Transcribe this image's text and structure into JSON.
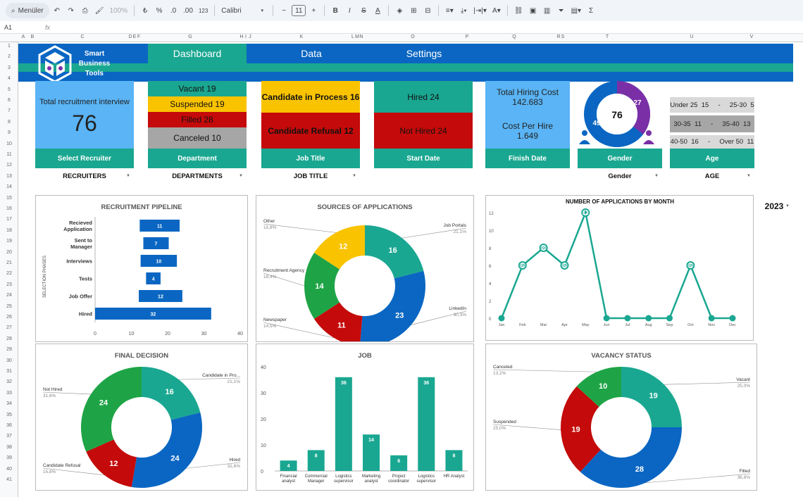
{
  "toolbar": {
    "menu_label": "Menüler",
    "zoom": "100%",
    "currency": "₺",
    "percent": "%",
    "dec_less": ".0",
    "dec_more": ".00",
    "num_format": "123",
    "font": "Calibri",
    "font_size": "11",
    "bold": "B",
    "italic": "I",
    "strike": "S",
    "text_color": "A",
    "sum": "Σ"
  },
  "formula_bar": {
    "cell_ref": "A1",
    "fx": "fx",
    "value": ""
  },
  "columns": [
    "A",
    "B",
    "C",
    "D",
    "E",
    "F",
    "G",
    "H",
    "I",
    "J",
    "K",
    "L",
    "M",
    "N",
    "O",
    "P",
    "Q",
    "R",
    "S",
    "T",
    "U",
    "V"
  ],
  "rows": [
    "1",
    "2",
    "3",
    "4",
    "5",
    "6",
    "7",
    "8",
    "9",
    "10",
    "11",
    "12",
    "13",
    "14",
    "15",
    "16",
    "17",
    "18",
    "19",
    "20",
    "21",
    "22",
    "23",
    "24",
    "25",
    "26",
    "27",
    "28",
    "29",
    "30",
    "31",
    "32",
    "33",
    "34",
    "35",
    "36",
    "37",
    "38",
    "39",
    "40",
    "41"
  ],
  "brand": {
    "line1": "Smart",
    "line2": "Business",
    "line3": "Tools"
  },
  "nav": {
    "dashboard": "Dashboard",
    "data": "Data",
    "settings": "Settings"
  },
  "colors": {
    "blue": "#0a66c2",
    "teal": "#1aa791",
    "green": "#1ea446",
    "red": "#c40a0a",
    "yellow": "#f9c300",
    "purple": "#7b2fa7",
    "lightblue": "#5ab4f5",
    "grey": "#a6a6a6"
  },
  "kpi": {
    "total_interview_label": "Total recruitment interview",
    "total_interview_value": "76",
    "select_recruiter": "Select Recruiter",
    "recruiters_dd": "RECRUITERS",
    "vacant": "Vacant  19",
    "suspended": "Suspended  19",
    "filled": "Filled  28",
    "canceled": "Canceled  10",
    "department": "Department",
    "departments_dd": "DEPARTMENTS",
    "candidate_process": "Candidate in Process  16",
    "candidate_refusal": "Candidate Refusal  12",
    "job_title": "Job Title",
    "job_title_dd": "JOB TITLE",
    "hired": "Hired  24",
    "not_hired": "Not Hired  24",
    "start_date": "Start Date",
    "total_hiring_cost_label": "Total Hiring Cost",
    "total_hiring_cost_value": "142.683",
    "cost_per_hire_label": "Cost Per Hire",
    "cost_per_hire_value": "1.649",
    "finish_date": "Finish Date",
    "gender_total": "76",
    "gender_male": "49",
    "gender_female": "27",
    "gender_label": "Gender",
    "gender_dd": "Gender",
    "age_r1": "Under 25  15     -     25-30  5",
    "age_r2": "30-35  11     -     35-40  13",
    "age_r3": "40-50  16     -     Over 50  11",
    "age_label": "Age",
    "age_dd": "AGE",
    "year_dd": "2023"
  },
  "chart_data": [
    {
      "type": "bar",
      "orientation": "horizontal",
      "title": "RECRUITMENT PIPELINE",
      "ylabel": "SELECTION PHASES",
      "categories": [
        "Recieved Application",
        "Sent to Manager",
        "Interviews",
        "Tests",
        "Job Offer",
        "Hired"
      ],
      "values": [
        11,
        7,
        10,
        4,
        12,
        32
      ],
      "xlim": [
        0,
        40
      ],
      "xticks": [
        "0",
        "10",
        "20",
        "30",
        "40"
      ]
    },
    {
      "type": "pie",
      "donut": true,
      "title": "SOURCES OF APPLICATIONS",
      "slices": [
        {
          "label": "Job Portals",
          "value": 16,
          "pct": "21,1%",
          "color": "#1aa791"
        },
        {
          "label": "LinkedIn",
          "value": 23,
          "pct": "30,3%",
          "color": "#0a66c2"
        },
        {
          "label": "Newspaper",
          "value": 11,
          "pct": "14,5%",
          "color": "#c40a0a"
        },
        {
          "label": "Recruitment Agency",
          "value": 14,
          "pct": "18,4%",
          "color": "#1ea446"
        },
        {
          "label": "Other",
          "value": 12,
          "pct": "15,8%",
          "color": "#f9c300"
        }
      ]
    },
    {
      "type": "line",
      "title": "NUMBER OF APPLICATIONS BY MONTH",
      "categories": [
        "Jan",
        "Feb",
        "Mar",
        "Apr",
        "May",
        "Jun",
        "Jul",
        "Aug",
        "Sep",
        "Oct",
        "Nov",
        "Dec"
      ],
      "values": [
        0,
        6,
        8,
        6,
        12,
        0,
        0,
        0,
        0,
        6,
        0,
        0
      ],
      "ylim": [
        0,
        12
      ],
      "yticks": [
        "0",
        "2",
        "4",
        "6",
        "8",
        "10",
        "12"
      ]
    },
    {
      "type": "pie",
      "donut": true,
      "title": "FINAL DECISION",
      "slices": [
        {
          "label": "Candidate in Pro...",
          "value": 16,
          "pct": "21,1%",
          "color": "#1aa791"
        },
        {
          "label": "Hired",
          "value": 24,
          "pct": "31,6%",
          "color": "#0a66c2"
        },
        {
          "label": "Candidate Refusal",
          "value": 12,
          "pct": "15,8%",
          "color": "#c40a0a"
        },
        {
          "label": "Not Hired",
          "value": 24,
          "pct": "31,6%",
          "color": "#1ea446"
        }
      ]
    },
    {
      "type": "bar",
      "title": "JOB",
      "categories": [
        "Financial analyst",
        "Commercial Manager",
        "Logistics supervisor",
        "Marketing analyst",
        "Project coordinator",
        "Logistics supervisor",
        "HR Analyst"
      ],
      "values": [
        4,
        8,
        36,
        14,
        6,
        36,
        8
      ],
      "ylim": [
        0,
        40
      ],
      "yticks": [
        "0",
        "10",
        "20",
        "30",
        "40"
      ]
    },
    {
      "type": "pie",
      "donut": true,
      "title": "VACANCY STATUS",
      "slices": [
        {
          "label": "Vacant",
          "value": 19,
          "pct": "25,0%",
          "color": "#1aa791"
        },
        {
          "label": "Filled",
          "value": 28,
          "pct": "36,8%",
          "color": "#0a66c2"
        },
        {
          "label": "Suspended",
          "value": 19,
          "pct": "25,0%",
          "color": "#c40a0a"
        },
        {
          "label": "Canceled",
          "value": 10,
          "pct": "13,2%",
          "color": "#1ea446"
        }
      ]
    }
  ]
}
